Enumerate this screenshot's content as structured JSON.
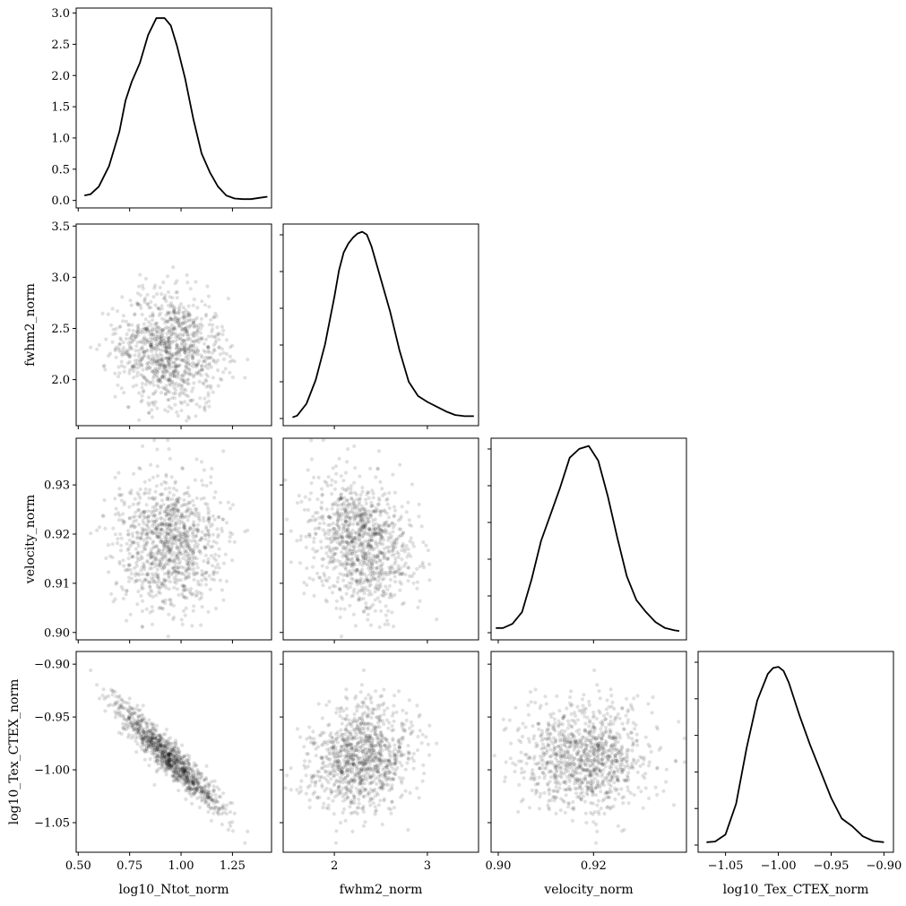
{
  "chart_data": {
    "type": "corner",
    "description_free": true,
    "variables": [
      {
        "name": "log10_Ntot_norm",
        "label": "log10_Ntot_norm",
        "range": [
          0.49,
          1.44
        ],
        "ticks": [
          0.5,
          0.75,
          1.0,
          1.25
        ],
        "tick_labels": [
          "0.50",
          "0.75",
          "1.00",
          "1.25"
        ]
      },
      {
        "name": "fwhm2_norm",
        "label": "fwhm2_norm",
        "range": [
          1.45,
          3.55
        ],
        "ticks": [
          2,
          3
        ],
        "tick_labels": [
          "2",
          "3"
        ],
        "ylim": [
          1.55,
          3.52
        ],
        "yticks": [
          2.0,
          2.5,
          3.0,
          3.5
        ],
        "ytick_labels": [
          "2.0",
          "2.5",
          "3.0",
          "3.5"
        ]
      },
      {
        "name": "velocity_norm",
        "label": "velocity_norm",
        "range": [
          0.8985,
          0.9395
        ],
        "ticks": [
          0.9,
          0.92
        ],
        "tick_labels": [
          "0.90",
          "0.92"
        ],
        "ylim": [
          0.8985,
          0.9395
        ],
        "yticks": [
          0.9,
          0.91,
          0.92,
          0.93
        ],
        "ytick_labels": [
          "0.90",
          "0.91",
          "0.92",
          "0.93"
        ]
      },
      {
        "name": "log10_Tex_CTEX_norm",
        "label": "log10_Tex_CTEX_norm",
        "range": [
          -1.076,
          -0.891
        ],
        "ticks": [
          -1.05,
          -1.0,
          -0.95,
          -0.9
        ],
        "tick_labels": [
          "−1.05",
          "−1.00",
          "−0.95",
          "−0.90"
        ],
        "ylim": [
          -1.078,
          -0.888
        ],
        "yticks": [
          -1.05,
          -1.0,
          -0.95,
          -0.9
        ],
        "ytick_labels": [
          "−1.05",
          "−1.00",
          "−0.95",
          "−0.90"
        ]
      }
    ],
    "diagonal_density_yaxis": {
      "ylim": [
        -0.12,
        3.08
      ],
      "yticks": [
        0.0,
        0.5,
        1.0,
        1.5,
        2.0,
        2.5,
        3.0
      ],
      "ytick_labels": [
        "0.0",
        "0.5",
        "1.0",
        "1.5",
        "2.0",
        "2.5",
        "3.0"
      ]
    },
    "kde": [
      {
        "x": [
          0.53,
          0.56,
          0.6,
          0.65,
          0.7,
          0.73,
          0.76,
          0.8,
          0.84,
          0.88,
          0.92,
          0.95,
          0.98,
          1.02,
          1.06,
          1.1,
          1.14,
          1.18,
          1.22,
          1.26,
          1.3,
          1.34,
          1.38,
          1.42
        ],
        "y": [
          0.08,
          0.1,
          0.22,
          0.55,
          1.1,
          1.6,
          1.9,
          2.2,
          2.65,
          2.92,
          2.92,
          2.8,
          2.48,
          1.95,
          1.3,
          0.75,
          0.45,
          0.22,
          0.08,
          0.03,
          0.02,
          0.02,
          0.04,
          0.06
        ]
      },
      {
        "x": [
          1.55,
          1.6,
          1.7,
          1.8,
          1.9,
          2.0,
          2.05,
          2.1,
          2.15,
          2.2,
          2.25,
          2.3,
          2.35,
          2.4,
          2.5,
          2.6,
          2.7,
          2.8,
          2.9,
          3.0,
          3.1,
          3.2,
          3.3,
          3.4,
          3.5
        ],
        "y": [
          0.02,
          0.05,
          0.25,
          0.65,
          1.25,
          2.05,
          2.5,
          2.8,
          2.95,
          3.05,
          3.12,
          3.15,
          3.1,
          2.9,
          2.35,
          1.8,
          1.15,
          0.62,
          0.38,
          0.28,
          0.2,
          0.12,
          0.06,
          0.04,
          0.04
        ]
      },
      {
        "x": [
          0.8995,
          0.901,
          0.903,
          0.905,
          0.907,
          0.909,
          0.911,
          0.913,
          0.915,
          0.917,
          0.919,
          0.921,
          0.923,
          0.925,
          0.927,
          0.929,
          0.931,
          0.933,
          0.935,
          0.937,
          0.938
        ],
        "y": [
          0.08,
          0.08,
          0.15,
          0.35,
          0.9,
          1.55,
          2.0,
          2.45,
          2.95,
          3.1,
          3.15,
          2.9,
          2.3,
          1.6,
          0.95,
          0.55,
          0.35,
          0.18,
          0.08,
          0.04,
          0.03
        ]
      },
      {
        "x": [
          -1.068,
          -1.06,
          -1.05,
          -1.04,
          -1.03,
          -1.02,
          -1.01,
          -1.005,
          -1.0,
          -0.995,
          -0.99,
          -0.98,
          -0.97,
          -0.96,
          -0.95,
          -0.94,
          -0.93,
          -0.92,
          -0.91,
          -0.9
        ],
        "y": [
          0.05,
          0.06,
          0.18,
          0.7,
          1.65,
          2.45,
          2.9,
          3.0,
          3.02,
          2.95,
          2.75,
          2.2,
          1.7,
          1.25,
          0.8,
          0.45,
          0.32,
          0.15,
          0.07,
          0.05
        ]
      }
    ],
    "samples": {
      "n": 1000,
      "means": [
        0.95,
        2.3,
        0.918,
        -0.99
      ],
      "stds": [
        0.13,
        0.28,
        0.0065,
        0.026
      ],
      "correlations": [
        [
          1,
          -0.1,
          -0.03,
          -0.94
        ],
        [
          -0.1,
          1,
          -0.2,
          0.18
        ],
        [
          -0.03,
          -0.2,
          1,
          0.0
        ],
        [
          -0.94,
          0.18,
          0.0,
          1
        ]
      ]
    },
    "style": {
      "line_color": "#000000",
      "point_color": "#000000",
      "point_opacity": 0.12
    }
  }
}
